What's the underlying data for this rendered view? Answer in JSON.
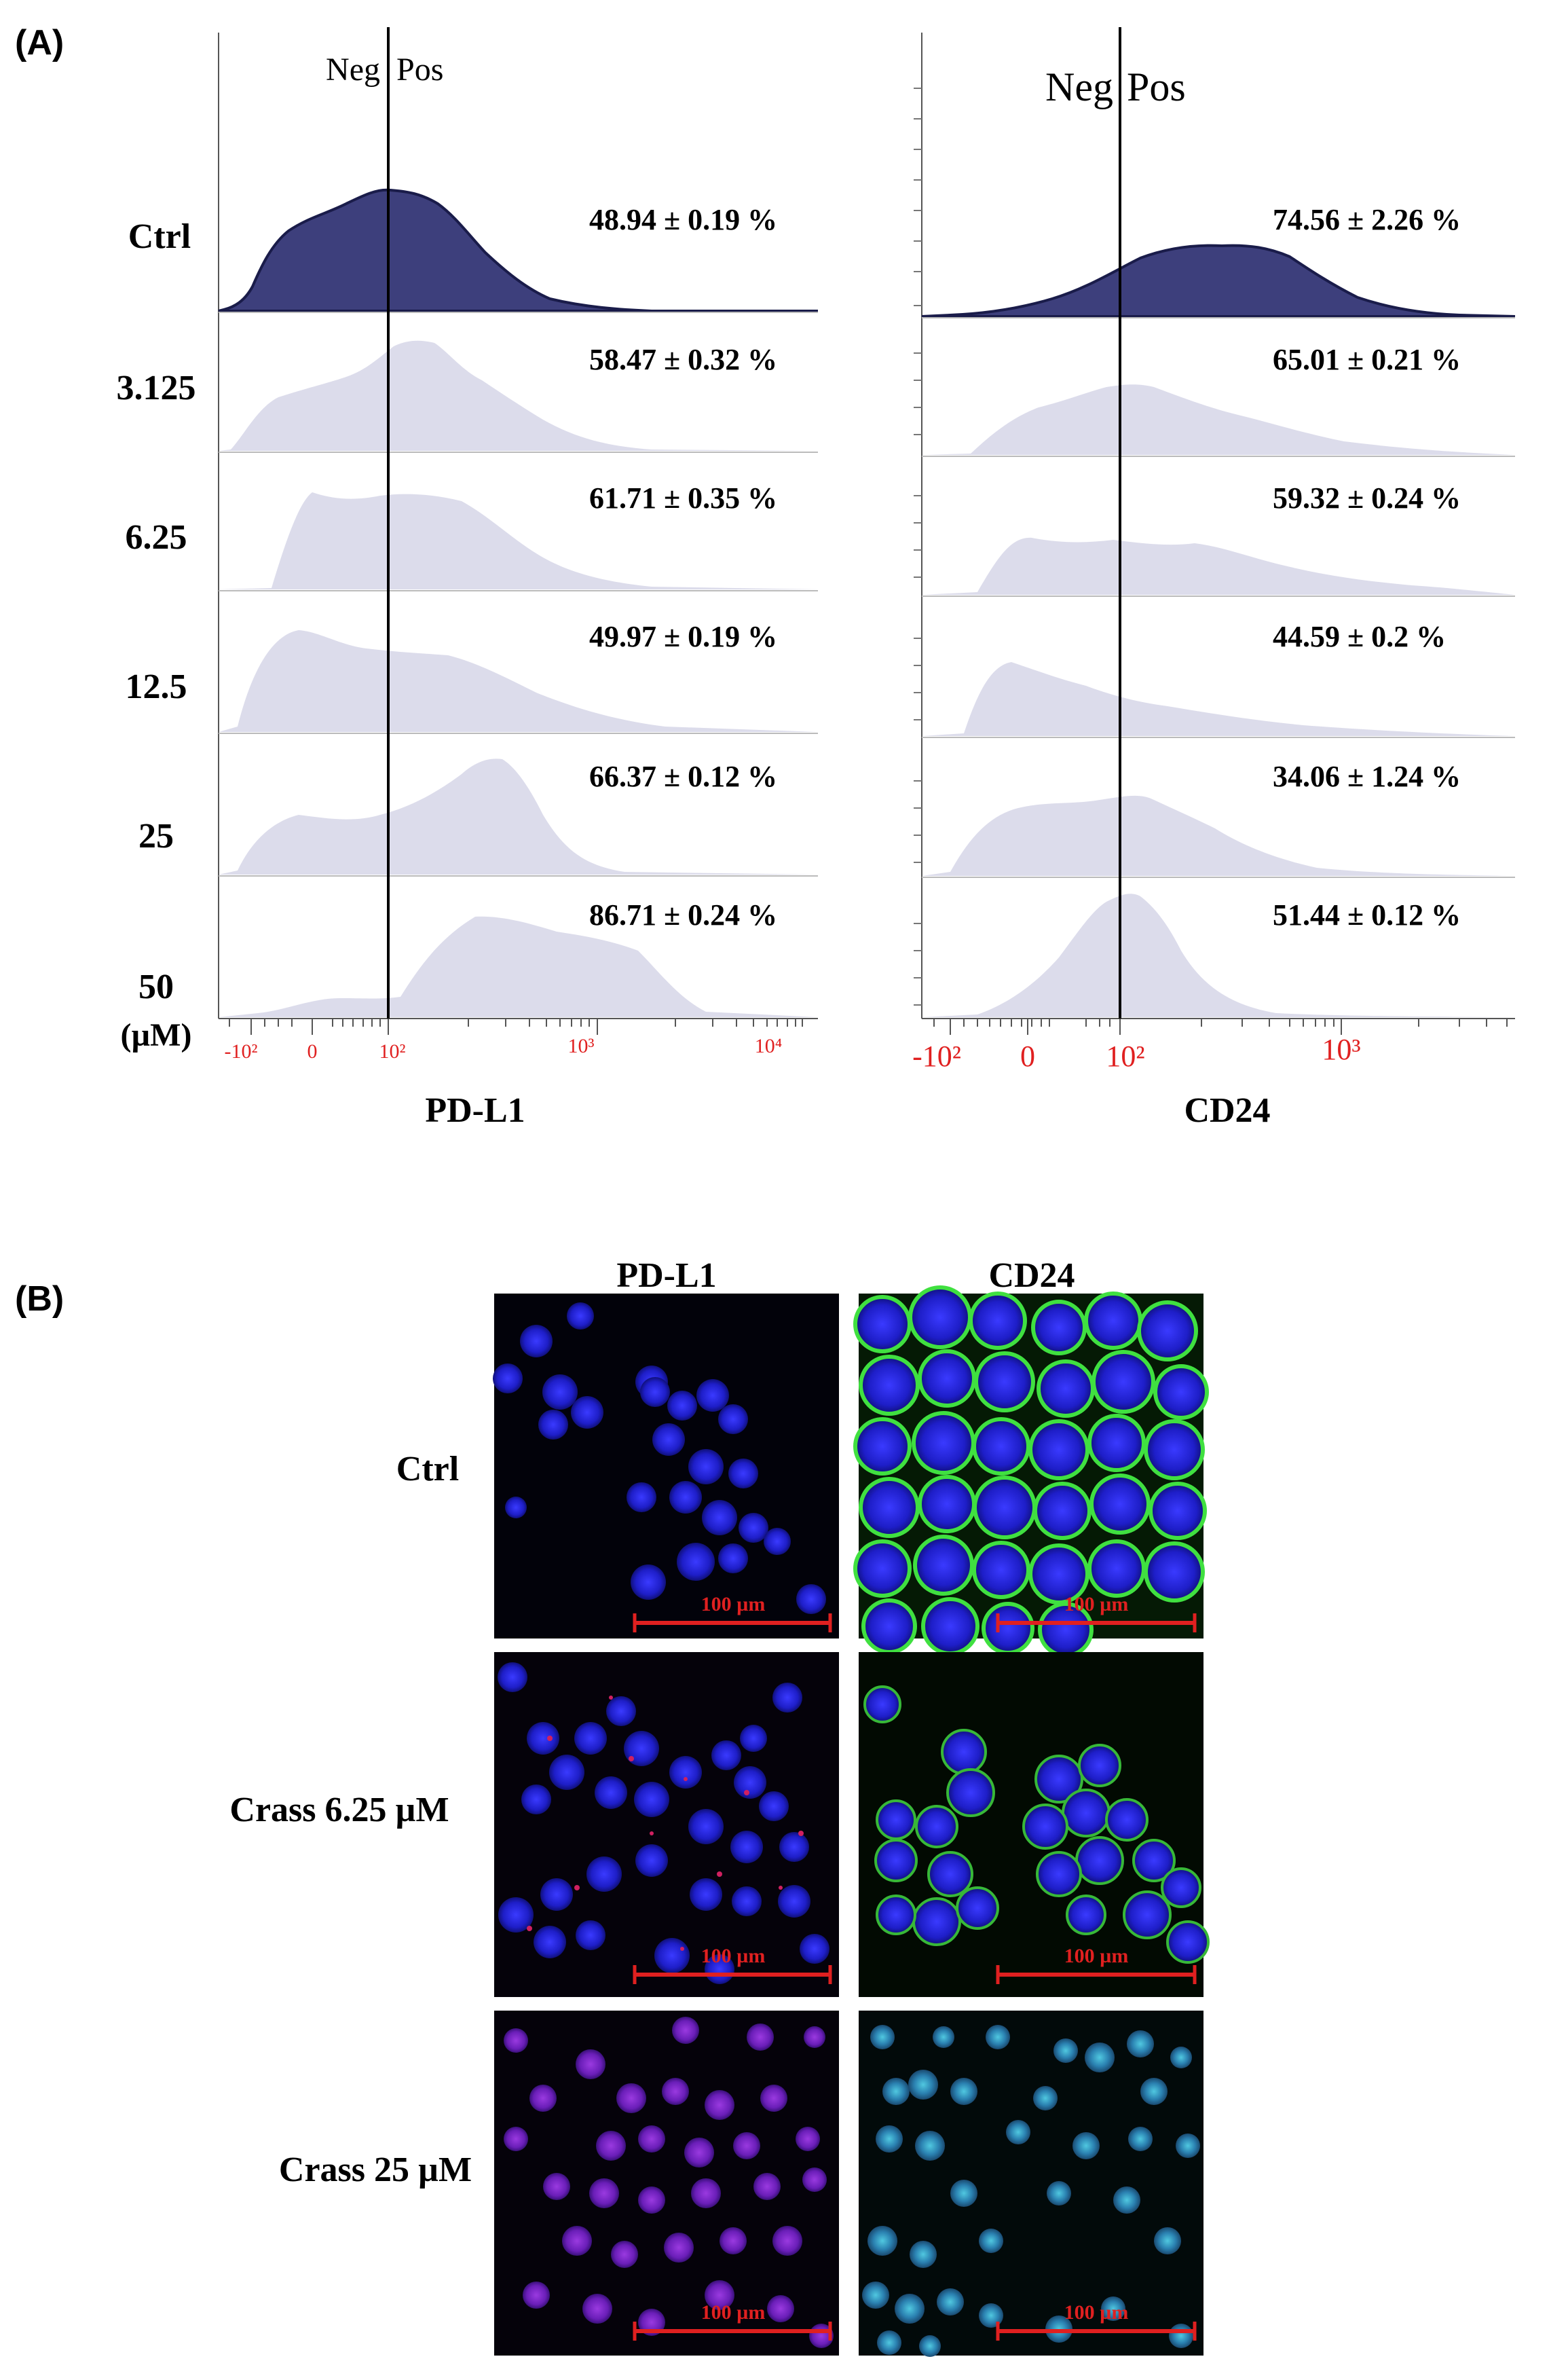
{
  "figure": {
    "panel_a_label": "(A)",
    "panel_b_label": "(B)"
  },
  "panel_a": {
    "gate_left": "Neg",
    "gate_right": "Pos",
    "rows": [
      "Ctrl",
      "3.125",
      "6.25",
      "12.5",
      "25",
      "50"
    ],
    "unit_label": "(µM)",
    "ctrl_color": "#3d3f7c",
    "treated_color": "#dcdceb",
    "tick_color": "#e02020",
    "histograms": [
      {
        "marker": "PD-L1",
        "axis_ticks": [
          "-10²",
          "0",
          "10²",
          "10³",
          "10⁴"
        ],
        "percentages": [
          "48.94 ± 0.19 %",
          "58.47 ± 0.32 %",
          "61.71 ± 0.35 %",
          "49.97 ± 0.19 %",
          "66.37 ± 0.12 %",
          "86.71 ± 0.24 %"
        ]
      },
      {
        "marker": "CD24",
        "axis_ticks": [
          "-10²",
          "0",
          "10²",
          "10³"
        ],
        "percentages": [
          "74.56 ± 2.26 %",
          "65.01 ± 0.21 %",
          "59.32 ± 0.24 %",
          "44.59 ± 0.2 %",
          "34.06 ± 1.24 %",
          "51.44 ± 0.12 %"
        ]
      }
    ]
  },
  "panel_b": {
    "columns": [
      "PD-L1",
      "CD24"
    ],
    "rows": [
      "Ctrl",
      "Crass 6.25 µM",
      "Crass 25 µM"
    ],
    "scale_bar_label": "100 µm",
    "scale_bar_color": "#e02020",
    "nucleus_color": "#2a2ae0",
    "pdl1_color": "#d02060",
    "cd24_color": "#30d030"
  }
}
